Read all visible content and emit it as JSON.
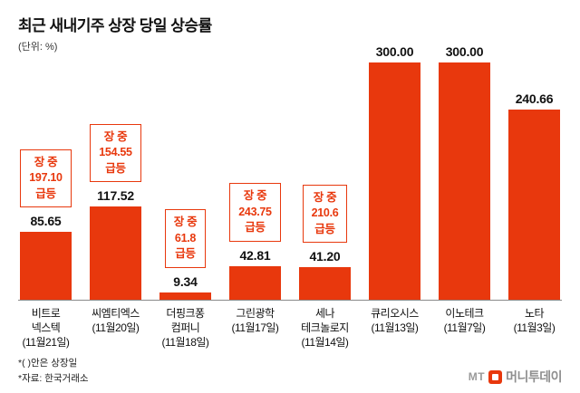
{
  "title": "최근 새내기주 상장 당일 상승률",
  "unit_label": "(단위: %)",
  "footnotes": {
    "note1": "*( )안은 상장일",
    "note2": "*자료: 한국거래소"
  },
  "logo": {
    "mt": "MT",
    "name": "머니투데이"
  },
  "colors": {
    "bar": "#e8380d",
    "annotation": "#e8380d"
  },
  "chart_data": {
    "type": "bar",
    "title": "최근 새내기주 상장 당일 상승률",
    "unit": "%",
    "ylim": [
      0,
      300
    ],
    "grid": false,
    "legend": "none",
    "categories": [
      "비트로\n넥스텍\n(11월21일)",
      "씨엠티엑스\n(11월20일)",
      "더핑크퐁\n컴퍼니\n(11월18일)",
      "그린광학\n(11월17일)",
      "세나\n테크놀로지\n(11월14일)",
      "큐리오시스\n(11월13일)",
      "이노테크\n(11월7일)",
      "노타\n(11월3일)"
    ],
    "values": [
      85.65,
      117.52,
      9.34,
      42.81,
      41.2,
      300.0,
      300.0,
      240.66
    ],
    "value_labels": [
      "85.65",
      "117.52",
      "9.34",
      "42.81",
      "41.20",
      "300.00",
      "300.00",
      "240.66"
    ],
    "annotations": [
      "장 중\n197.10\n급등",
      "장 중\n154.55\n급등",
      "장 중\n61.8\n급등",
      "장 중\n243.75\n급등",
      "장 중\n210.6\n급등",
      null,
      null,
      null
    ]
  }
}
